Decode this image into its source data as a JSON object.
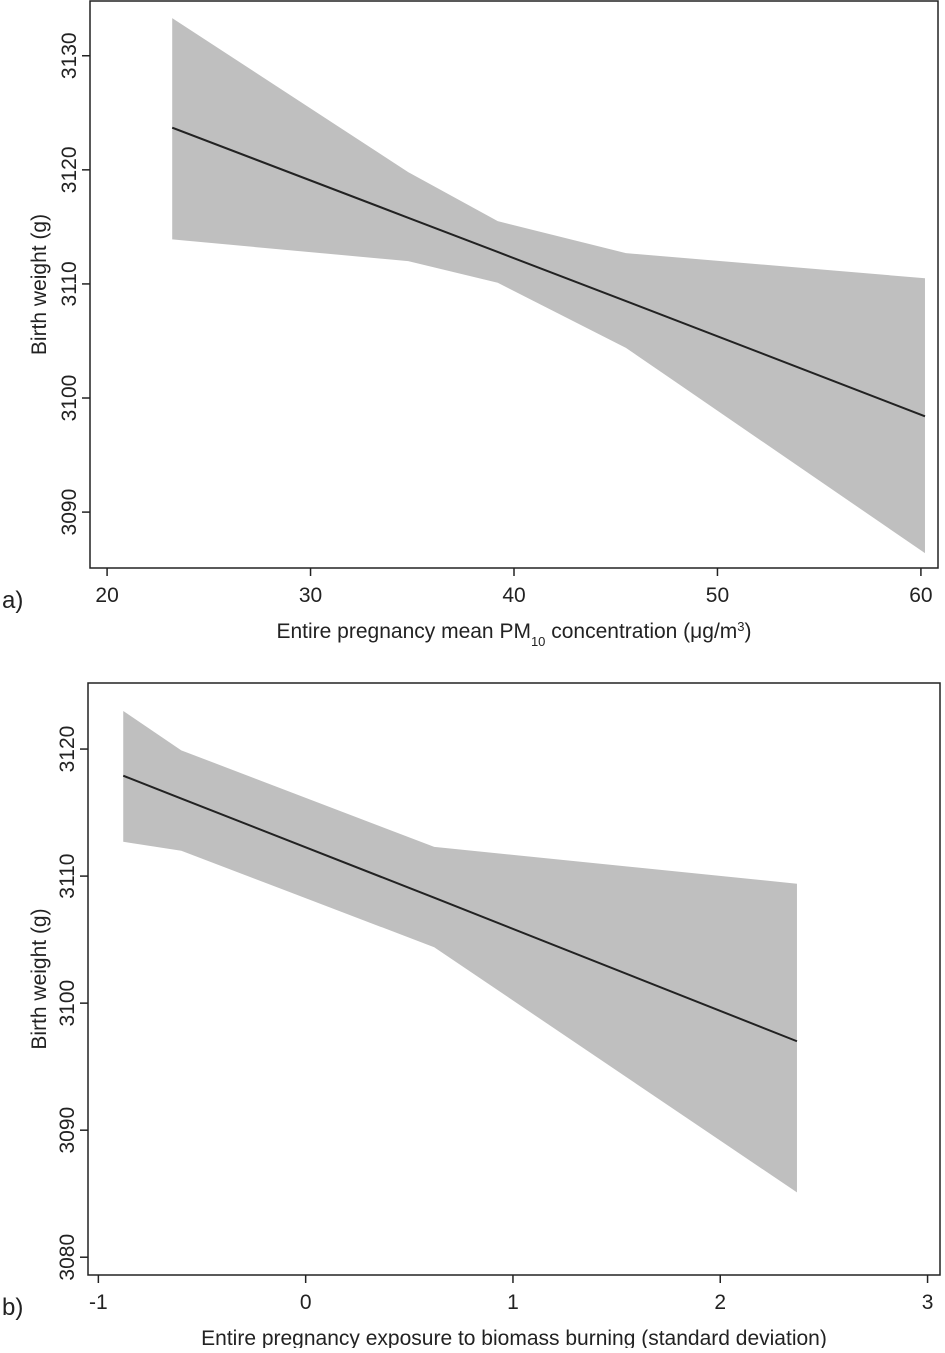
{
  "chart_data": [
    {
      "type": "line",
      "label": "a)",
      "ylabel": "Birth weight (g)",
      "xlabel": [
        "Entire pregnancy mean PM",
        "10",
        " concentration (μg/m",
        "3",
        ")"
      ],
      "xlabel_style": [
        "normal",
        "sub",
        "normal",
        "super",
        "normal"
      ],
      "x": [
        23.2,
        34.8,
        39.2,
        45.5,
        60.2
      ],
      "values": [
        3123.7,
        3115.8,
        3112.8,
        3108.5,
        3098.4
      ],
      "ci_upper": [
        3133.3,
        3119.8,
        3115.5,
        3112.7,
        3110.5
      ],
      "ci_lower": [
        3113.9,
        3112.0,
        3110.1,
        3104.4,
        3086.4
      ],
      "color": "#222222",
      "band_color": "#bfbfbf",
      "xlim": [
        19.16,
        60.84
      ],
      "ylim": [
        3085.1,
        3134.8
      ],
      "xticks": [
        20,
        30,
        40,
        50,
        60
      ],
      "yticks": [
        3090,
        3100,
        3110,
        3120,
        3130
      ]
    },
    {
      "type": "line",
      "label": "b)",
      "ylabel": "Birth weight (g)",
      "xlabel": [
        "Entire pregnancy exposure to biomass burning (standard deviation)"
      ],
      "xlabel_style": [
        "normal"
      ],
      "x": [
        -0.88,
        -0.6,
        0.62,
        2.37
      ],
      "values": [
        3117.9,
        3116.1,
        3108.3,
        3097.0
      ],
      "ci_upper": [
        3123.0,
        3119.9,
        3112.3,
        3109.4
      ],
      "ci_lower": [
        3112.7,
        3112.0,
        3104.4,
        3085.1
      ],
      "color": "#222222",
      "band_color": "#bfbfbf",
      "xlim": [
        -1.05,
        3.06
      ],
      "ylim": [
        3078.6,
        3125.2
      ],
      "xticks": [
        -1,
        0,
        1,
        2,
        3
      ],
      "yticks": [
        3080,
        3090,
        3100,
        3110,
        3120
      ]
    }
  ]
}
